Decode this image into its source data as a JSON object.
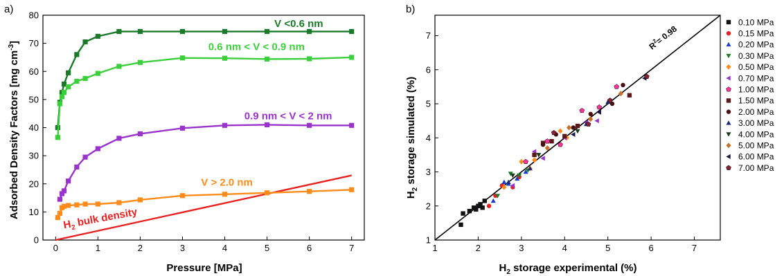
{
  "panel_labels": {
    "a": "a)",
    "b": "b)"
  },
  "chart_data": [
    {
      "type": "line",
      "xlabel": "Pressure [MPa]",
      "ylabel_main": "Adsorbed Density Factors [mg cm",
      "ylabel_sup": "-3",
      "ylabel_end": "]",
      "xlim": [
        -0.3,
        7.3
      ],
      "ylim": [
        0,
        80
      ],
      "xticks": [
        0,
        1,
        2,
        3,
        4,
        5,
        6,
        7
      ],
      "yticks": [
        0,
        10,
        20,
        30,
        40,
        50,
        60,
        70,
        80
      ],
      "series": [
        {
          "name": "V <0.6 nm",
          "color": "#1a7a2a",
          "x": [
            0.05,
            0.1,
            0.15,
            0.2,
            0.3,
            0.5,
            0.7,
            1.0,
            1.5,
            2.0,
            3.0,
            4.0,
            5.0,
            6.0,
            7.0
          ],
          "y": [
            40,
            49,
            52.5,
            55.5,
            59.5,
            66,
            70.5,
            72.5,
            74.2,
            74.2,
            74.2,
            74.2,
            74.2,
            74.2,
            74.2
          ]
        },
        {
          "name": "0.6 nm < V < 0.9 nm",
          "color": "#3ccf3c",
          "x": [
            0.05,
            0.1,
            0.15,
            0.2,
            0.3,
            0.5,
            0.7,
            1.0,
            1.5,
            2.0,
            3.0,
            4.0,
            5.0,
            6.0,
            7.0
          ],
          "y": [
            36.5,
            48.5,
            51,
            52.5,
            54.5,
            56.5,
            57.5,
            59.3,
            61.8,
            63.2,
            64.8,
            64.7,
            64.4,
            64.5,
            65
          ]
        },
        {
          "name": "0.9 nm < V < 2 nm",
          "color": "#9933cc",
          "x": [
            0.1,
            0.15,
            0.2,
            0.3,
            0.5,
            0.7,
            1.0,
            1.5,
            2.0,
            3.0,
            4.0,
            5.0,
            6.0,
            7.0
          ],
          "y": [
            14.5,
            16.5,
            17.5,
            21,
            26,
            29.5,
            32.5,
            36.2,
            37.8,
            39.8,
            40.8,
            41,
            40.8,
            40.8
          ]
        },
        {
          "name": "V > 2.0 nm",
          "color": "#ff8c1a",
          "x": [
            0.05,
            0.1,
            0.15,
            0.2,
            0.3,
            0.5,
            0.7,
            1.0,
            1.5,
            2.0,
            3.0,
            4.0,
            5.0,
            6.0,
            7.0
          ],
          "y": [
            8,
            9.5,
            11.5,
            12,
            12.3,
            12.5,
            12.8,
            12.8,
            13.3,
            14.3,
            15.8,
            16.3,
            16.8,
            17.3,
            17.9
          ]
        }
      ],
      "bulk_line": {
        "label_sub": "2",
        "label_main": "H",
        "label_rest": " bulk density",
        "color": "#e8201f",
        "x": [
          0,
          7
        ],
        "y": [
          0,
          23
        ]
      }
    },
    {
      "type": "scatter",
      "xlabel_main": "H",
      "xlabel_sub": "2",
      "xlabel_rest": " storage experimental (%)",
      "ylabel_main": "H",
      "ylabel_sub": "2",
      "ylabel_rest": " storage simulated (%)",
      "xlim": [
        1,
        7.6
      ],
      "ylim": [
        1,
        7.6
      ],
      "xticks": [
        1,
        2,
        3,
        4,
        5,
        6,
        7
      ],
      "yticks": [
        1,
        2,
        3,
        4,
        5,
        6,
        7
      ],
      "fit_line": {
        "x": [
          1,
          7.6
        ],
        "y": [
          1,
          7.6
        ],
        "label_main": "R",
        "label_sup": "2",
        "label_rest": "= 0.98"
      },
      "series": [
        {
          "name": "0.10 MPa",
          "color": "#111111",
          "marker": "square",
          "points": [
            [
              1.6,
              1.45
            ],
            [
              1.65,
              1.78
            ],
            [
              1.8,
              1.85
            ],
            [
              1.9,
              1.95
            ],
            [
              1.95,
              1.9
            ],
            [
              2.05,
              2.05
            ],
            [
              2.1,
              1.95
            ],
            [
              2.0,
              2.0
            ],
            [
              2.15,
              2.15
            ]
          ]
        },
        {
          "name": "0.15 MPa",
          "color": "#e8201f",
          "marker": "circle",
          "points": [
            [
              2.25,
              2.0
            ],
            [
              2.4,
              2.3
            ],
            [
              2.55,
              2.6
            ],
            [
              2.8,
              2.55
            ],
            [
              2.95,
              2.85
            ]
          ]
        },
        {
          "name": "0.20 MPa",
          "color": "#1a3ccc",
          "marker": "triangle-up",
          "points": [
            [
              2.35,
              2.15
            ],
            [
              2.6,
              2.7
            ],
            [
              2.7,
              2.65
            ],
            [
              2.9,
              2.8
            ],
            [
              3.1,
              3.0
            ]
          ]
        },
        {
          "name": "0.30 MPa",
          "color": "#1a7a2a",
          "marker": "triangle-down",
          "points": [
            [
              2.45,
              2.3
            ],
            [
              2.75,
              2.95
            ],
            [
              2.95,
              2.9
            ],
            [
              3.15,
              3.05
            ]
          ]
        },
        {
          "name": "0.50 MPa",
          "color": "#ff8c1a",
          "marker": "diamond",
          "points": [
            [
              2.6,
              2.55
            ],
            [
              3.0,
              3.3
            ],
            [
              3.2,
              3.1
            ],
            [
              3.3,
              3.35
            ],
            [
              3.9,
              4.2
            ],
            [
              4.05,
              4.0
            ]
          ]
        },
        {
          "name": "0.70 MPa",
          "color": "#9933cc",
          "marker": "triangle-left",
          "points": [
            [
              2.8,
              2.6
            ],
            [
              3.3,
              3.6
            ],
            [
              3.5,
              3.4
            ],
            [
              4.0,
              4.0
            ],
            [
              4.5,
              4.45
            ],
            [
              4.75,
              4.5
            ]
          ]
        },
        {
          "name": "1.00 MPa",
          "color": "#ff3399",
          "marker": "pentagon",
          "points": [
            [
              3.1,
              3.3
            ],
            [
              3.6,
              3.9
            ],
            [
              3.9,
              3.8
            ],
            [
              4.4,
              4.8
            ],
            [
              4.8,
              4.9
            ],
            [
              5.2,
              5.5
            ]
          ]
        },
        {
          "name": "1.50 MPa",
          "color": "#5a1a1a",
          "marker": "square",
          "points": [
            [
              3.3,
              3.5
            ],
            [
              3.5,
              3.85
            ],
            [
              3.7,
              3.9
            ],
            [
              4.0,
              4.05
            ],
            [
              4.3,
              4.35
            ],
            [
              5.5,
              5.25
            ]
          ]
        },
        {
          "name": "2.00 MPa",
          "color": "#4a1010",
          "marker": "circle",
          "points": [
            [
              3.5,
              3.8
            ],
            [
              3.8,
              4.1
            ],
            [
              4.2,
              4.3
            ],
            [
              4.6,
              4.7
            ],
            [
              5.1,
              5.0
            ],
            [
              5.35,
              5.55
            ]
          ]
        },
        {
          "name": "3.00 MPa",
          "color": "#1a2a7a",
          "marker": "triangle-up",
          "points": [
            [
              2.7,
              2.7
            ],
            [
              3.2,
              3.1
            ],
            [
              4.5,
              4.4
            ],
            [
              5.0,
              5.05
            ]
          ]
        },
        {
          "name": "4.00 MPa",
          "color": "#1a3a1a",
          "marker": "triangle-down",
          "points": [
            [
              2.8,
              2.9
            ],
            [
              3.4,
              3.5
            ],
            [
              4.3,
              4.2
            ]
          ]
        },
        {
          "name": "5.00 MPa",
          "color": "#c8702a",
          "marker": "diamond",
          "points": [
            [
              3.6,
              3.7
            ],
            [
              4.1,
              4.3
            ],
            [
              4.6,
              4.55
            ],
            [
              5.3,
              5.3
            ]
          ]
        },
        {
          "name": "6.00 MPa",
          "color": "#1a1a4a",
          "marker": "triangle-left",
          "points": [
            [
              4.2,
              4.1
            ],
            [
              4.8,
              4.75
            ],
            [
              5.85,
              5.75
            ]
          ]
        },
        {
          "name": "7.00 MPa",
          "color": "#8a2030",
          "marker": "pentagon",
          "points": [
            [
              3.75,
              4.15
            ],
            [
              4.55,
              4.4
            ],
            [
              5.05,
              5.1
            ],
            [
              5.9,
              5.8
            ]
          ]
        }
      ]
    }
  ]
}
